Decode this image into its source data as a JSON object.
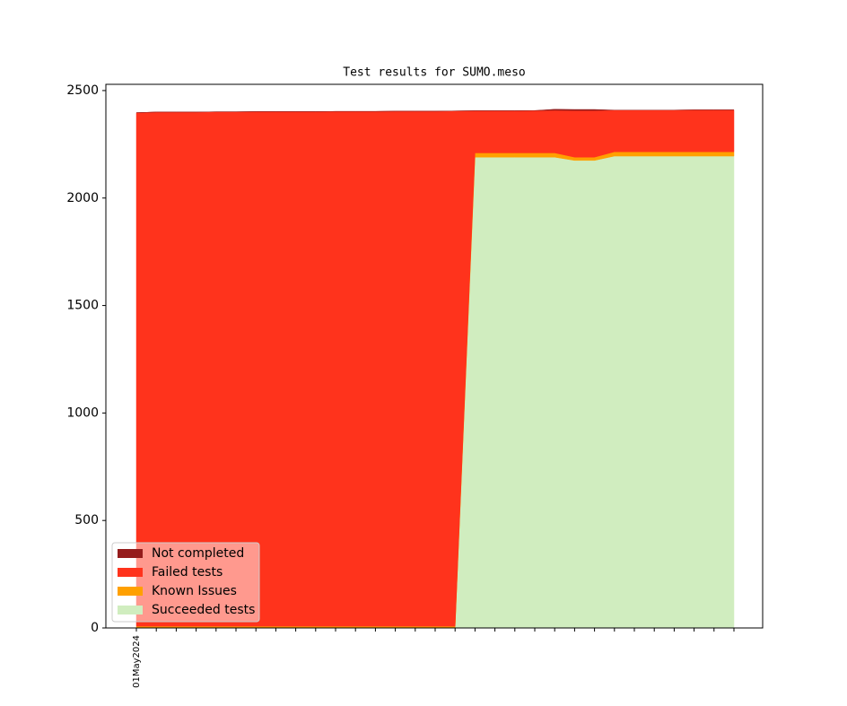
{
  "chart_data": {
    "type": "stacked_area",
    "title": "Test results for SUMO.meso",
    "categories": [
      "01May2024",
      null,
      null,
      null,
      null,
      null,
      null,
      null,
      null,
      null,
      null,
      null,
      null,
      null,
      null,
      null,
      null,
      null,
      null,
      null,
      null,
      null,
      null,
      null,
      null,
      null,
      null,
      null,
      null,
      null,
      null
    ],
    "series": [
      {
        "name": "Not completed",
        "color": "#951c1c",
        "values": [
          0,
          0,
          0,
          0,
          0,
          0,
          0,
          0,
          0,
          0,
          0,
          0,
          0,
          0,
          0,
          0,
          0,
          0,
          0,
          0,
          0,
          5,
          5,
          5,
          0,
          0,
          0,
          0,
          0,
          0,
          0
        ]
      },
      {
        "name": "Failed tests",
        "color": "#ff331c",
        "values": [
          2389,
          2392,
          2392,
          2392,
          2393,
          2393,
          2394,
          2394,
          2394,
          2394,
          2395,
          2395,
          2395,
          2396,
          2396,
          2396,
          2397,
          196,
          196,
          196,
          197,
          198,
          217,
          217,
          194,
          194,
          194,
          194,
          195,
          195,
          195
        ]
      },
      {
        "name": "Known Issues",
        "color": "#ffa000",
        "values": [
          8,
          8,
          8,
          8,
          8,
          8,
          8,
          8,
          8,
          8,
          8,
          8,
          8,
          8,
          8,
          8,
          8,
          20,
          20,
          20,
          20,
          20,
          15,
          15,
          20,
          20,
          20,
          20,
          20,
          20,
          20
        ]
      },
      {
        "name": "Succeeded tests",
        "color": "#d0edbf",
        "values": [
          0,
          0,
          0,
          0,
          0,
          0,
          0,
          0,
          0,
          0,
          0,
          0,
          0,
          0,
          0,
          0,
          0,
          2190,
          2190,
          2190,
          2190,
          2190,
          2175,
          2175,
          2195,
          2195,
          2195,
          2195,
          2195,
          2195,
          2195
        ]
      }
    ],
    "ylim": [
      0,
      2529
    ],
    "yticks": [
      0,
      500,
      1000,
      1500,
      2000,
      2500
    ],
    "legend": "lower left"
  }
}
